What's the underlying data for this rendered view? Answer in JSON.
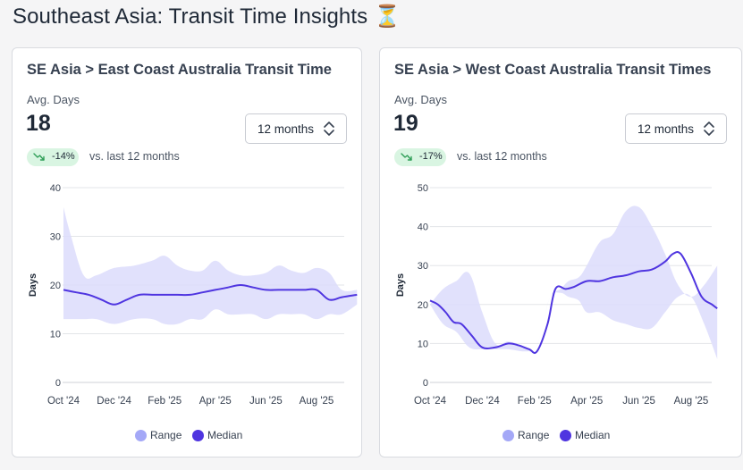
{
  "page": {
    "title": "Southeast Asia: Transit Time Insights ⏳"
  },
  "colors": {
    "range": "#dcdcfb",
    "median": "#4f35e0",
    "range_legend": "#a4a8f7",
    "badge_bg": "#d9f5e2",
    "trend_icon": "#2f9e57"
  },
  "cards": [
    {
      "title": "SE Asia > East Coast Australia Transit Time",
      "avg_label": "Avg. Days",
      "avg_value": "18",
      "period_select": "12 months",
      "change_badge": "-14%",
      "comparison": "vs. last 12 months",
      "legend": {
        "range": "Range",
        "median": "Median"
      }
    },
    {
      "title": "SE Asia > West Coast Australia Transit Times",
      "avg_label": "Avg. Days",
      "avg_value": "19",
      "period_select": "12 months",
      "change_badge": "-17%",
      "comparison": "vs. last 12 months",
      "legend": {
        "range": "Range",
        "median": "Median"
      }
    }
  ],
  "chart_data": [
    {
      "type": "area",
      "ylabel": "Days",
      "ylim": [
        0,
        40
      ],
      "yticks": [
        0,
        10,
        20,
        30,
        40
      ],
      "xlim": [
        0,
        11.6
      ],
      "xtick_labels": [
        "Oct '24",
        "Dec '24",
        "Feb '25",
        "Apr '25",
        "Jun '25",
        "Aug '25"
      ],
      "xtick_positions": [
        0,
        2,
        4,
        6,
        8,
        10
      ],
      "grid": true,
      "legend_position": "bottom",
      "series": [
        {
          "name": "Range",
          "x": [
            0,
            0.3,
            0.8,
            1.3,
            2,
            2.8,
            3.5,
            4,
            4.5,
            5,
            5.5,
            6,
            6.5,
            7,
            7.5,
            8,
            8.5,
            9,
            9.5,
            10,
            10.5,
            11,
            11.6
          ],
          "low": [
            13,
            13,
            13,
            13,
            12,
            13,
            13,
            12,
            12,
            13,
            13,
            15,
            14,
            14,
            14,
            13,
            14,
            14,
            14,
            13,
            14,
            14,
            16
          ],
          "high": [
            36,
            30,
            22,
            22,
            23.5,
            24,
            25,
            26,
            24,
            23,
            23,
            25,
            23,
            22,
            22,
            22.5,
            24,
            23,
            22.5,
            23.5,
            22.5,
            19,
            19
          ]
        },
        {
          "name": "Median",
          "x": [
            0,
            0.5,
            1,
            1.5,
            2,
            2.5,
            3,
            3.5,
            4,
            4.5,
            5,
            5.5,
            6,
            6.5,
            7,
            7.5,
            8,
            8.5,
            9,
            9.5,
            10,
            10.5,
            11,
            11.6
          ],
          "values": [
            19,
            18.5,
            18,
            17,
            16,
            17,
            18,
            18,
            18,
            18,
            18,
            18.5,
            19,
            19.5,
            20,
            19.5,
            19,
            19,
            19,
            19,
            19,
            17,
            17.5,
            18
          ]
        }
      ]
    },
    {
      "type": "area",
      "ylabel": "Days",
      "ylim": [
        0,
        50
      ],
      "yticks": [
        0,
        10,
        20,
        30,
        40,
        50
      ],
      "xlim": [
        0,
        11.6
      ],
      "xtick_labels": [
        "Oct '24",
        "Dec '24",
        "Feb '25",
        "Apr '25",
        "Jun '25",
        "Aug '25"
      ],
      "xtick_positions": [
        0,
        2,
        4,
        6,
        8,
        10
      ],
      "grid": true,
      "legend_position": "bottom",
      "series": [
        {
          "name": "Range",
          "x": [
            0,
            0.5,
            1,
            1.5,
            2,
            2.5,
            3,
            3.5,
            3.8,
            4,
            4.3,
            4.6,
            5,
            5.3,
            5.7,
            6,
            6.5,
            7,
            7.5,
            8,
            8.5,
            9,
            9.5,
            10,
            10.5,
            11
          ],
          "low": [
            20,
            15,
            13,
            9,
            8.5,
            8.5,
            8.5,
            8,
            8,
            8,
            14,
            22,
            23,
            22,
            21,
            18,
            18,
            16,
            15,
            14,
            14,
            18,
            22,
            22,
            15,
            6
          ],
          "high": [
            20,
            24,
            26,
            28,
            18,
            10,
            10.5,
            9.5,
            8.5,
            8,
            14,
            22,
            24,
            26,
            27,
            30,
            36,
            38,
            44,
            45,
            40,
            33,
            25,
            22,
            25,
            30
          ]
        },
        {
          "name": "Median",
          "x": [
            0,
            0.3,
            0.6,
            0.9,
            1.2,
            1.6,
            2,
            2.5,
            3,
            3.4,
            3.8,
            4.1,
            4.5,
            4.8,
            5.2,
            5.5,
            6,
            6.5,
            7,
            7.5,
            8,
            8.5,
            9,
            9.3,
            9.6,
            10,
            10.4,
            10.8,
            11
          ],
          "values": [
            21,
            20,
            18,
            15.5,
            15,
            12,
            9,
            9,
            10,
            9.5,
            8.5,
            8,
            15,
            24,
            24,
            24.5,
            26,
            26,
            27,
            27.5,
            28.5,
            29,
            31,
            33,
            33,
            28,
            22,
            20,
            19
          ]
        }
      ]
    }
  ]
}
